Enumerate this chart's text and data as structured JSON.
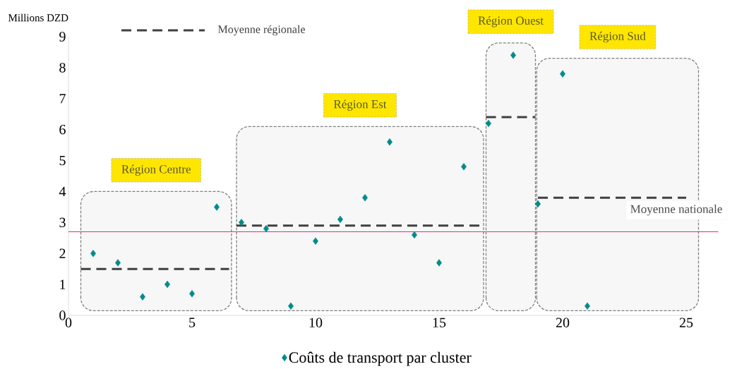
{
  "chart_data": {
    "type": "scatter",
    "ylabel": "Millions DZD",
    "xlim": [
      0,
      25
    ],
    "xticks": [
      0,
      5,
      10,
      15,
      20,
      25
    ],
    "ylim": [
      0,
      9
    ],
    "yticks": [
      0,
      1,
      2,
      3,
      4,
      5,
      6,
      7,
      8,
      9
    ],
    "grid": false,
    "legend": "bottom",
    "marker": "diamond",
    "series": [
      {
        "name": "Coûts de transport par cluster",
        "color": "#008b8b",
        "x": [
          1,
          2,
          3,
          4,
          5,
          6,
          7,
          8,
          9,
          10,
          11,
          12,
          13,
          14,
          15,
          16,
          17,
          18,
          19,
          20,
          21
        ],
        "values": [
          2.0,
          1.7,
          0.6,
          1.0,
          0.7,
          3.5,
          3.0,
          2.8,
          0.3,
          2.4,
          3.1,
          3.8,
          5.6,
          2.6,
          1.7,
          4.8,
          6.2,
          8.4,
          3.6,
          7.8,
          0.3
        ]
      },
      {
        "name": "Moyenne régionale",
        "type": "line",
        "line_style": "dashed",
        "marker": "none",
        "color": "#404040",
        "x": [
          0.5,
          6.5,
          6.6,
          6.8,
          16.8,
          16.85,
          16.9,
          18.9,
          18.95,
          19,
          25
        ],
        "values": [
          1.5,
          1.5,
          null,
          2.9,
          2.9,
          null,
          6.4,
          6.4,
          null,
          3.8,
          3.8
        ]
      }
    ],
    "ref_lines": [
      {
        "axis": "y",
        "value": 2.7,
        "label": "Moyenne nationale",
        "color": "#ff1f7f"
      }
    ],
    "bands": [
      {
        "axis": "x",
        "from": 0.5,
        "to": 6.6,
        "label": "Région Centre",
        "color": "#808080"
      },
      {
        "axis": "x",
        "from": 6.8,
        "to": 16.8,
        "label": "Région Est",
        "color": "#808080"
      },
      {
        "axis": "x",
        "from": 16.9,
        "to": 18.9,
        "label": "Région Ouest",
        "color": "#808080"
      },
      {
        "axis": "x",
        "from": 18.95,
        "to": 25.5,
        "label": "Région Sud",
        "color": "#808080"
      }
    ]
  }
}
